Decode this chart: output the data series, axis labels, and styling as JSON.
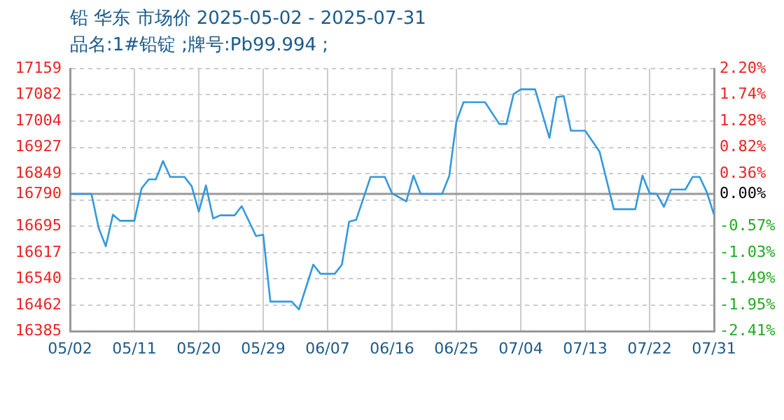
{
  "chart_data": {
    "type": "line",
    "title": "铅 华东 市场价 2025-05-02 - 2025-07-31",
    "subtitle": "品名:1#铅锭 ;牌号:Pb99.994 ;",
    "x": [
      "2025-05-02",
      "2025-05-05",
      "2025-05-06",
      "2025-05-07",
      "2025-05-08",
      "2025-05-09",
      "2025-05-11",
      "2025-05-12",
      "2025-05-13",
      "2025-05-14",
      "2025-05-15",
      "2025-05-16",
      "2025-05-18",
      "2025-05-19",
      "2025-05-20",
      "2025-05-21",
      "2025-05-22",
      "2025-05-23",
      "2025-05-25",
      "2025-05-26",
      "2025-05-28",
      "2025-05-29",
      "2025-05-30",
      "2025-06-02",
      "2025-06-03",
      "2025-06-05",
      "2025-06-06",
      "2025-06-08",
      "2025-06-09",
      "2025-06-10",
      "2025-06-11",
      "2025-06-13",
      "2025-06-15",
      "2025-06-16",
      "2025-06-18",
      "2025-06-19",
      "2025-06-20",
      "2025-06-23",
      "2025-06-24",
      "2025-06-25",
      "2025-06-26",
      "2025-06-29",
      "2025-07-01",
      "2025-07-02",
      "2025-07-03",
      "2025-07-04",
      "2025-07-06",
      "2025-07-08",
      "2025-07-09",
      "2025-07-10",
      "2025-07-11",
      "2025-07-13",
      "2025-07-15",
      "2025-07-17",
      "2025-07-20",
      "2025-07-21",
      "2025-07-22",
      "2025-07-23",
      "2025-07-24",
      "2025-07-25",
      "2025-07-27",
      "2025-07-28",
      "2025-07-29",
      "2025-07-30",
      "2025-07-31"
    ],
    "series": [
      {
        "color": "#3399dd",
        "values": [
          16790,
          16790,
          16690,
          16636,
          16729,
          16711,
          16711,
          16806,
          16833,
          16833,
          16887,
          16840,
          16840,
          16813,
          16738,
          16815,
          16718,
          16727,
          16727,
          16754,
          16666,
          16670,
          16473,
          16473,
          16450,
          16582,
          16555,
          16555,
          16582,
          16708,
          16714,
          16840,
          16840,
          16792,
          16768,
          16844,
          16790,
          16790,
          16843,
          17003,
          17060,
          17060,
          16996,
          16996,
          17084,
          17098,
          17098,
          16955,
          17075,
          17078,
          16976,
          16976,
          16915,
          16745,
          16745,
          16844,
          16792,
          16790,
          16752,
          16803,
          16803,
          16840,
          16840,
          16795,
          16729
        ]
      }
    ],
    "xlim": [
      "2025-05-02",
      "2025-07-31"
    ],
    "xticks": [
      {
        "value": "2025-05-02",
        "label": "05/02"
      },
      {
        "value": "2025-05-11",
        "label": "05/11"
      },
      {
        "value": "2025-05-20",
        "label": "05/20"
      },
      {
        "value": "2025-05-29",
        "label": "05/29"
      },
      {
        "value": "2025-06-07",
        "label": "06/07"
      },
      {
        "value": "2025-06-16",
        "label": "06/16"
      },
      {
        "value": "2025-06-25",
        "label": "06/25"
      },
      {
        "value": "2025-07-04",
        "label": "07/04"
      },
      {
        "value": "2025-07-13",
        "label": "07/13"
      },
      {
        "value": "2025-07-22",
        "label": "07/22"
      },
      {
        "value": "2025-07-31",
        "label": "07/31"
      }
    ],
    "ylim": [
      16385,
      17159
    ],
    "yticks": [
      16385,
      16462,
      16540,
      16617,
      16695,
      {
        "value": 16772,
        "label": null
      },
      16790,
      16849,
      16927,
      17004,
      17082,
      17159
    ],
    "y2lim": [
      -2.41,
      2.2
    ],
    "y2ticks": [
      {
        "value": -2.41,
        "label": "-2.41%"
      },
      {
        "value": -1.95,
        "label": "-1.95%"
      },
      {
        "value": -1.49,
        "label": "-1.49%"
      },
      {
        "value": -1.03,
        "label": "-1.03%"
      },
      {
        "value": -0.57,
        "label": "-0.57%"
      },
      {
        "value": 0,
        "label": "0.00%"
      },
      {
        "value": 0.36,
        "label": "0.36%"
      },
      {
        "value": 0.82,
        "label": "0.82%"
      },
      {
        "value": 1.28,
        "label": "1.28%"
      },
      {
        "value": 1.74,
        "label": "1.74%"
      },
      {
        "value": 2.2,
        "label": "2.20%"
      }
    ],
    "ref_lines": [
      {
        "axis": "y",
        "value": 16790,
        "color": "#999999",
        "line_style": "solid"
      }
    ],
    "grid": true,
    "marker": "none",
    "line_style": "solid"
  }
}
